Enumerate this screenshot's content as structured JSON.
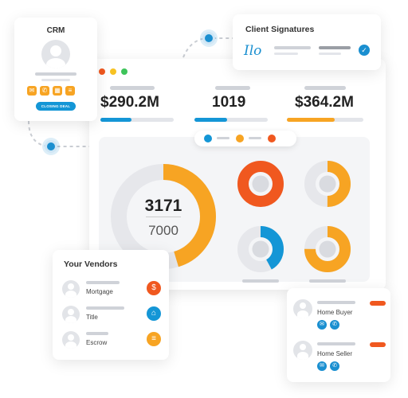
{
  "crm": {
    "title": "CRM",
    "button_label": "CLOSING DEAL",
    "icons": [
      "mail-icon",
      "phone-icon",
      "calendar-icon",
      "document-icon"
    ]
  },
  "signatures": {
    "title": "Client Signatures",
    "signature_text": "Ilo"
  },
  "window": {
    "stats": [
      {
        "value": "$290.2M",
        "progress": 0.42,
        "color": "#1496d6"
      },
      {
        "value": "1019",
        "progress": 0.45,
        "color": "#1496d6"
      },
      {
        "value": "$364.2M",
        "progress": 0.62,
        "color": "#f7a423"
      }
    ],
    "legend_colors": [
      "#1496d6",
      "#f7a423",
      "#f0581f"
    ],
    "big_donut": {
      "value": "3171",
      "total": "7000",
      "fraction": 0.453
    },
    "small_donuts": [
      {
        "fraction": 1.0,
        "color": "#f0581f"
      },
      {
        "fraction": 0.5,
        "color": "#f7a423"
      },
      {
        "fraction": 0.42,
        "color": "#1496d6"
      },
      {
        "fraction": 0.75,
        "color": "#f7a423"
      }
    ]
  },
  "vendors": {
    "title": "Your Vendors",
    "items": [
      {
        "label": "Mortgage",
        "icon": "dollar-icon",
        "color": "#f0581f"
      },
      {
        "label": "Title",
        "icon": "house-icon",
        "color": "#1496d6"
      },
      {
        "label": "Escrow",
        "icon": "document-icon",
        "color": "#f7a423"
      }
    ]
  },
  "contacts": {
    "items": [
      {
        "label": "Home Buyer"
      },
      {
        "label": "Home Seller"
      }
    ]
  },
  "colors": {
    "blue": "#1496d6",
    "orange": "#f7a423",
    "red": "#f0581f"
  }
}
